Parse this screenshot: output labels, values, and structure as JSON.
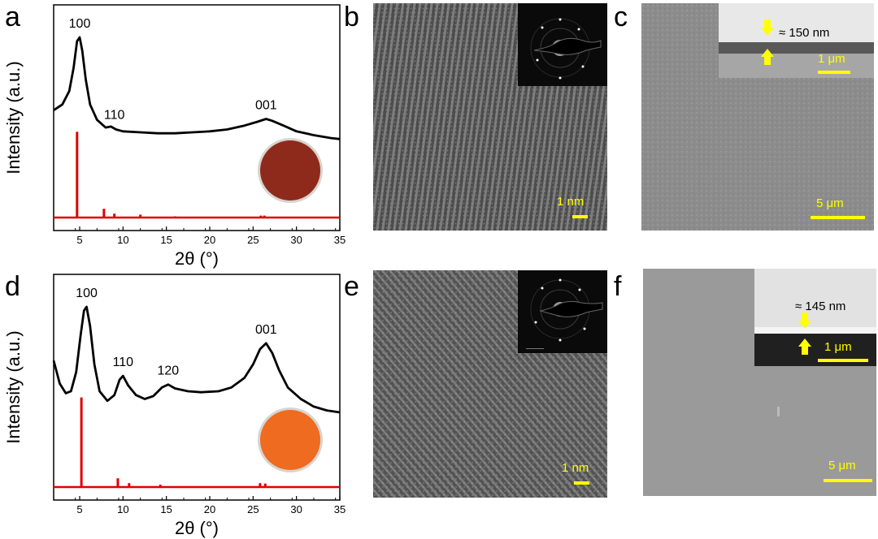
{
  "figure": {
    "panel_labels": {
      "a": "a",
      "b": "b",
      "c": "c",
      "d": "d",
      "e": "e",
      "f": "f"
    }
  },
  "chart_data": [
    {
      "type": "line",
      "panel": "a",
      "xlabel": "2θ (°)",
      "ylabel": "Intensity (a.u.)",
      "xlim": [
        2,
        35
      ],
      "x_ticks": [
        5,
        10,
        15,
        20,
        25,
        30,
        35
      ],
      "series": [
        {
          "color": "#000000",
          "x": [
            2.0,
            3.0,
            3.8,
            4.3,
            4.7,
            5.0,
            5.3,
            5.7,
            6.2,
            7.0,
            8.0,
            8.6,
            9.2,
            10.0,
            12.0,
            14.0,
            16.0,
            18.0,
            20.0,
            22.0,
            24.0,
            25.5,
            26.5,
            27.2,
            28.5,
            30.0,
            32.0,
            34.0,
            35.0
          ],
          "y": [
            0.62,
            0.65,
            0.72,
            0.84,
            0.98,
            1.0,
            0.93,
            0.78,
            0.65,
            0.57,
            0.53,
            0.535,
            0.52,
            0.51,
            0.505,
            0.5,
            0.5,
            0.505,
            0.51,
            0.52,
            0.54,
            0.56,
            0.575,
            0.565,
            0.54,
            0.51,
            0.49,
            0.475,
            0.47
          ]
        },
        {
          "color": "#e00000",
          "type": "stick",
          "x": [
            4.7,
            7.8,
            9.0,
            12.0,
            16.0,
            25.9,
            26.3
          ],
          "y": [
            0.44,
            0.045,
            0.02,
            0.015,
            0.006,
            0.01,
            0.01
          ]
        }
      ],
      "annotations": [
        {
          "text": "100",
          "x": 5.0
        },
        {
          "text": "110",
          "x": 9.0
        },
        {
          "text": "001",
          "x": 26.5
        }
      ],
      "inset": {
        "kind": "photo",
        "color": "#8e2a1c"
      }
    },
    {
      "type": "line",
      "panel": "d",
      "xlabel": "2θ (°)",
      "ylabel": "Intensity (a.u.)",
      "xlim": [
        2,
        35
      ],
      "x_ticks": [
        5,
        10,
        15,
        20,
        25,
        30,
        35
      ],
      "series": [
        {
          "color": "#000000",
          "x": [
            2.0,
            2.7,
            3.4,
            4.0,
            4.6,
            5.1,
            5.5,
            5.8,
            6.2,
            6.7,
            7.3,
            8.2,
            9.0,
            9.6,
            10.0,
            10.6,
            11.5,
            12.5,
            13.5,
            14.5,
            15.2,
            16.0,
            17.5,
            19.0,
            21.0,
            22.5,
            24.0,
            25.0,
            25.8,
            26.5,
            27.2,
            28.0,
            29.0,
            30.5,
            32.0,
            33.5,
            35.0
          ],
          "y": [
            0.72,
            0.6,
            0.55,
            0.56,
            0.66,
            0.85,
            0.98,
            1.0,
            0.9,
            0.7,
            0.56,
            0.51,
            0.54,
            0.62,
            0.64,
            0.59,
            0.54,
            0.52,
            0.535,
            0.58,
            0.595,
            0.575,
            0.56,
            0.555,
            0.56,
            0.58,
            0.63,
            0.7,
            0.78,
            0.81,
            0.76,
            0.67,
            0.58,
            0.52,
            0.48,
            0.46,
            0.45
          ]
        },
        {
          "color": "#e00000",
          "type": "stick",
          "x": [
            5.2,
            9.4,
            10.7,
            14.3,
            25.8,
            26.4
          ],
          "y": [
            0.46,
            0.045,
            0.02,
            0.012,
            0.02,
            0.018
          ]
        }
      ],
      "annotations": [
        {
          "text": "100",
          "x": 5.8
        },
        {
          "text": "110",
          "x": 10.0
        },
        {
          "text": "120",
          "x": 15.2
        },
        {
          "text": "001",
          "x": 26.5
        }
      ],
      "inset": {
        "kind": "photo",
        "color": "#ee6b20"
      }
    }
  ],
  "micrographs": {
    "b": {
      "scale": "1 nm"
    },
    "c": {
      "scale": "5 μm",
      "inset_scale": "1 μm",
      "thickness": "≈ 150 nm"
    },
    "e": {
      "scale": "1 nm"
    },
    "f": {
      "scale": "5 μm",
      "inset_scale": "1 μm",
      "thickness": "≈ 145 nm"
    }
  },
  "colors": {
    "accent": "#ffff00",
    "pattern": "#e00000",
    "tem_bg": "#555555",
    "sem_bg": "#909090"
  }
}
